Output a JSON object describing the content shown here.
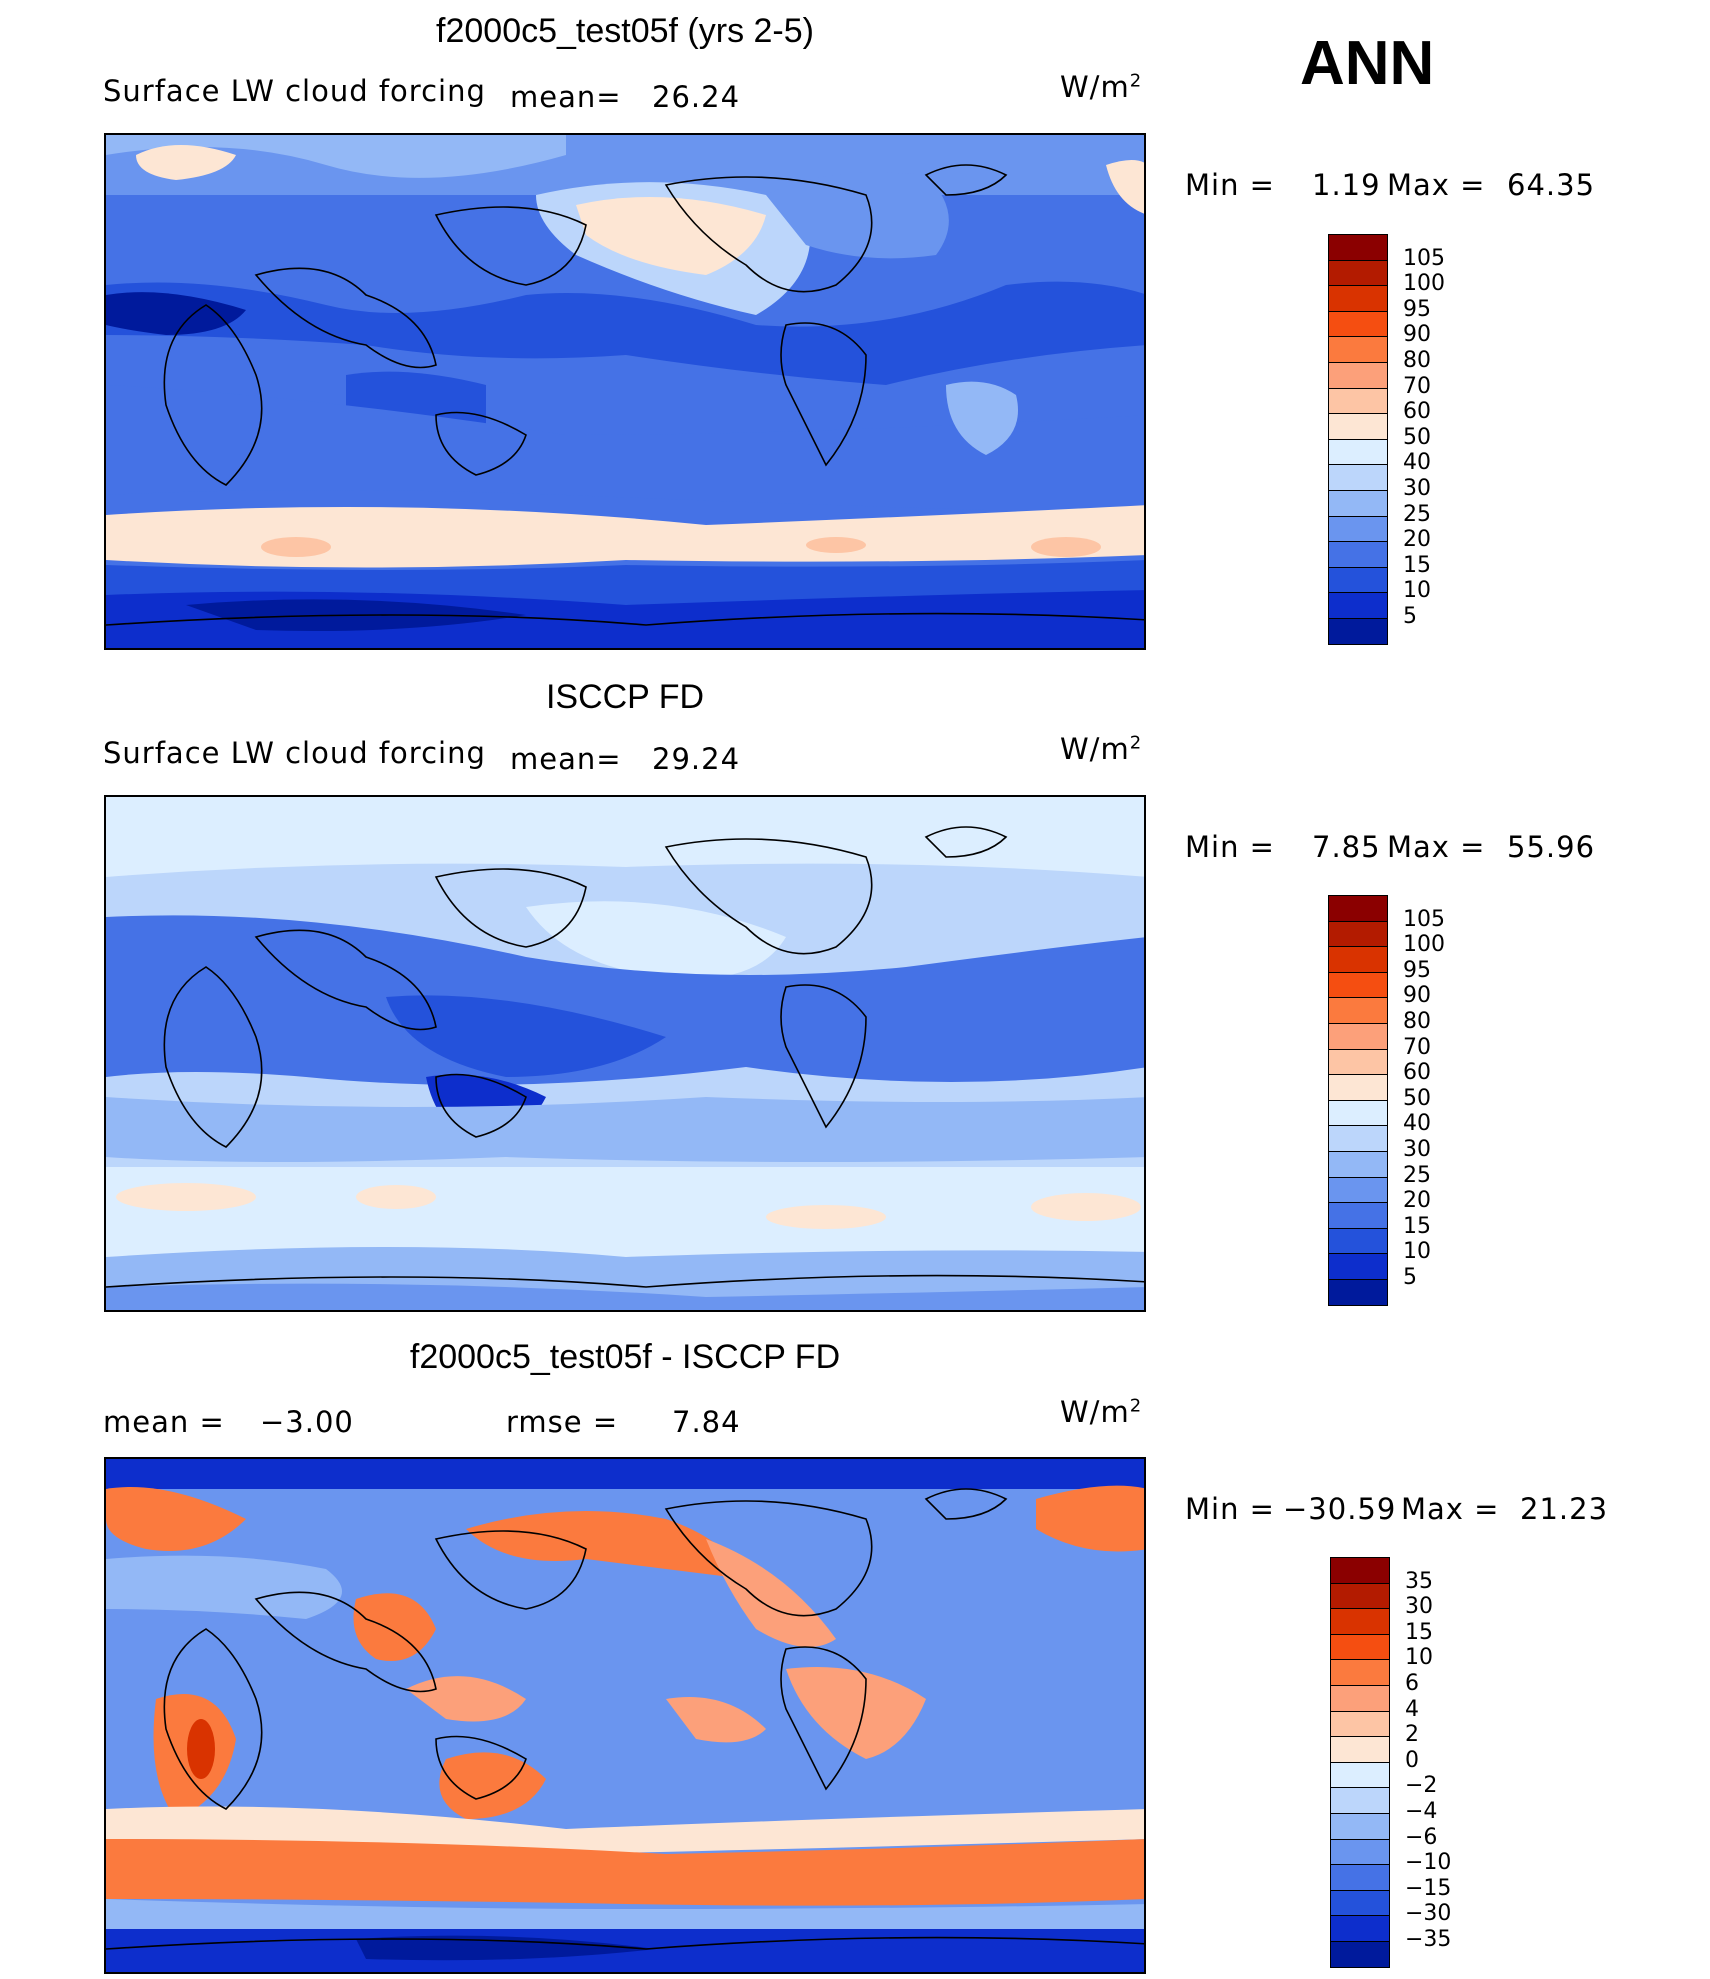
{
  "season": "ANN",
  "units_prefix": "W/m",
  "units_sup": "2",
  "panels": [
    {
      "id": "model",
      "title": "f2000c5_test05f (yrs 2-5)",
      "variable": "Surface LW cloud forcing",
      "mean_label": "mean=",
      "mean_value": "26.24",
      "min_label": "Min =",
      "min_value": "1.19",
      "max_label": "Max =",
      "max_value": "64.35",
      "colorbar": {
        "labels": [
          "105",
          "100",
          "95",
          "90",
          "80",
          "70",
          "60",
          "50",
          "40",
          "30",
          "25",
          "20",
          "15",
          "10",
          "5"
        ],
        "colors": [
          "#8b0000",
          "#b31b00",
          "#d93300",
          "#f54e11",
          "#fb7a3e",
          "#fca07a",
          "#fdc5a5",
          "#fde6d4",
          "#dceeff",
          "#bcd6fb",
          "#93b8f6",
          "#6a95ef",
          "#4572e6",
          "#2452db",
          "#0d2ecc",
          "#001a9c"
        ]
      }
    },
    {
      "id": "obs",
      "title": "ISCCP FD",
      "variable": "Surface LW cloud forcing",
      "mean_label": "mean=",
      "mean_value": "29.24",
      "min_label": "Min =",
      "min_value": "7.85",
      "max_label": "Max =",
      "max_value": "55.96",
      "colorbar": {
        "labels": [
          "105",
          "100",
          "95",
          "90",
          "80",
          "70",
          "60",
          "50",
          "40",
          "30",
          "25",
          "20",
          "15",
          "10",
          "5"
        ],
        "colors": [
          "#8b0000",
          "#b31b00",
          "#d93300",
          "#f54e11",
          "#fb7a3e",
          "#fca07a",
          "#fdc5a5",
          "#fde6d4",
          "#dceeff",
          "#bcd6fb",
          "#93b8f6",
          "#6a95ef",
          "#4572e6",
          "#2452db",
          "#0d2ecc",
          "#001a9c"
        ]
      }
    },
    {
      "id": "diff",
      "title": "f2000c5_test05f - ISCCP FD",
      "mean_label": "mean =",
      "mean_value": "−3.00",
      "rmse_label": "rmse =",
      "rmse_value": "7.84",
      "min_label": "Min =",
      "min_value": "−30.59",
      "max_label": "Max =",
      "max_value": "21.23",
      "colorbar": {
        "labels": [
          "35",
          "30",
          "15",
          "10",
          "6",
          "4",
          "2",
          "0",
          "−2",
          "−4",
          "−6",
          "−10",
          "−15",
          "−30",
          "−35"
        ],
        "colors": [
          "#8b0000",
          "#b31b00",
          "#d93300",
          "#f54e11",
          "#fb7a3e",
          "#fca07a",
          "#fdc5a5",
          "#fde6d4",
          "#dceeff",
          "#bcd6fb",
          "#93b8f6",
          "#6a95ef",
          "#4572e6",
          "#2452db",
          "#0d2ecc",
          "#001a9c"
        ]
      }
    }
  ]
}
